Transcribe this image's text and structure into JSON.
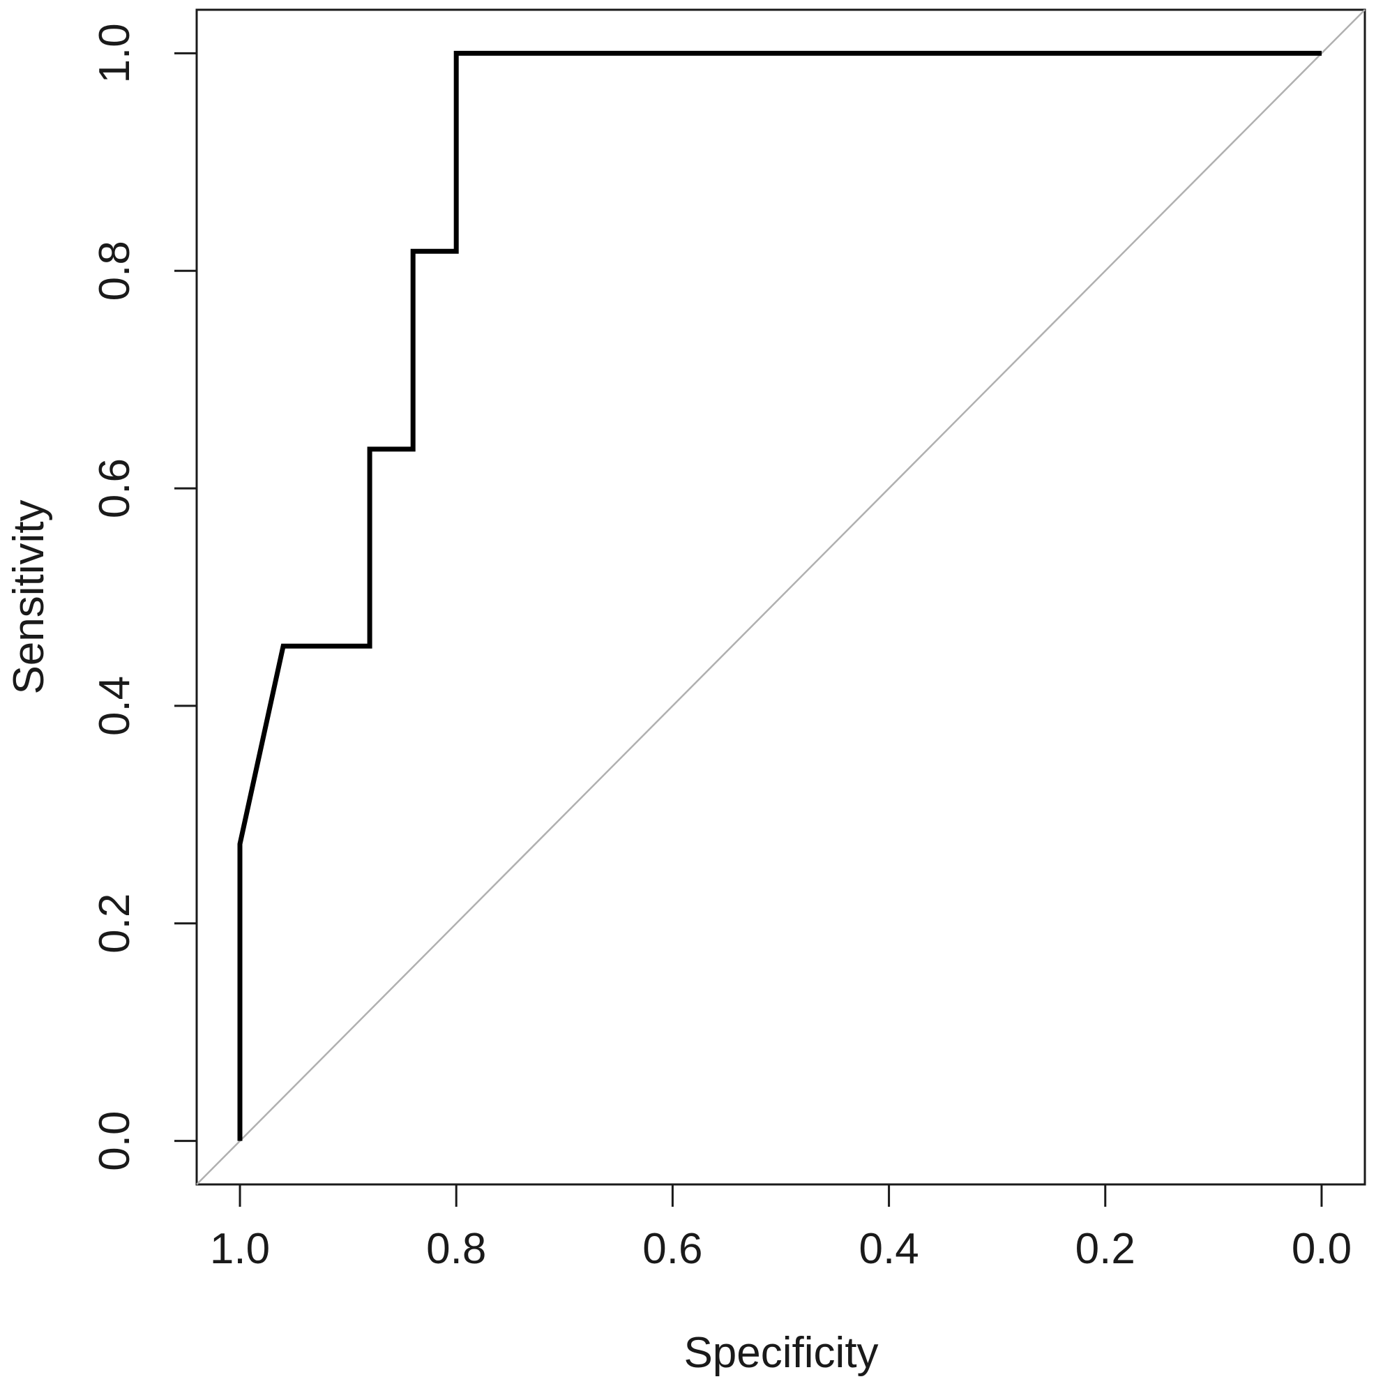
{
  "chart_data": {
    "type": "line",
    "title": "",
    "xlabel": "Specificity",
    "ylabel": "Sensitivity",
    "x_reversed": true,
    "xlim": [
      1.04,
      -0.04
    ],
    "ylim": [
      -0.04,
      1.04
    ],
    "x_ticks": [
      1.0,
      0.8,
      0.6,
      0.4,
      0.2,
      0.0
    ],
    "x_tick_labels": [
      "1.0",
      "0.8",
      "0.6",
      "0.4",
      "0.2",
      "0.0"
    ],
    "y_ticks": [
      0.0,
      0.2,
      0.4,
      0.6,
      0.8,
      1.0
    ],
    "y_tick_labels": [
      "0.0",
      "0.2",
      "0.4",
      "0.6",
      "0.8",
      "1.0"
    ],
    "grid": false,
    "series": [
      {
        "style": "solid",
        "color": "#000000",
        "x": [
          1.0,
          1.0,
          0.96,
          0.88,
          0.88,
          0.84,
          0.84,
          0.8,
          0.8,
          0.0
        ],
        "y": [
          0.0,
          0.273,
          0.455,
          0.455,
          0.636,
          0.636,
          0.818,
          0.818,
          1.0,
          1.0
        ]
      },
      {
        "style": "reference",
        "color": "#b0b0b0",
        "x": [
          1.04,
          -0.04
        ],
        "y": [
          -0.04,
          1.04
        ]
      }
    ]
  }
}
